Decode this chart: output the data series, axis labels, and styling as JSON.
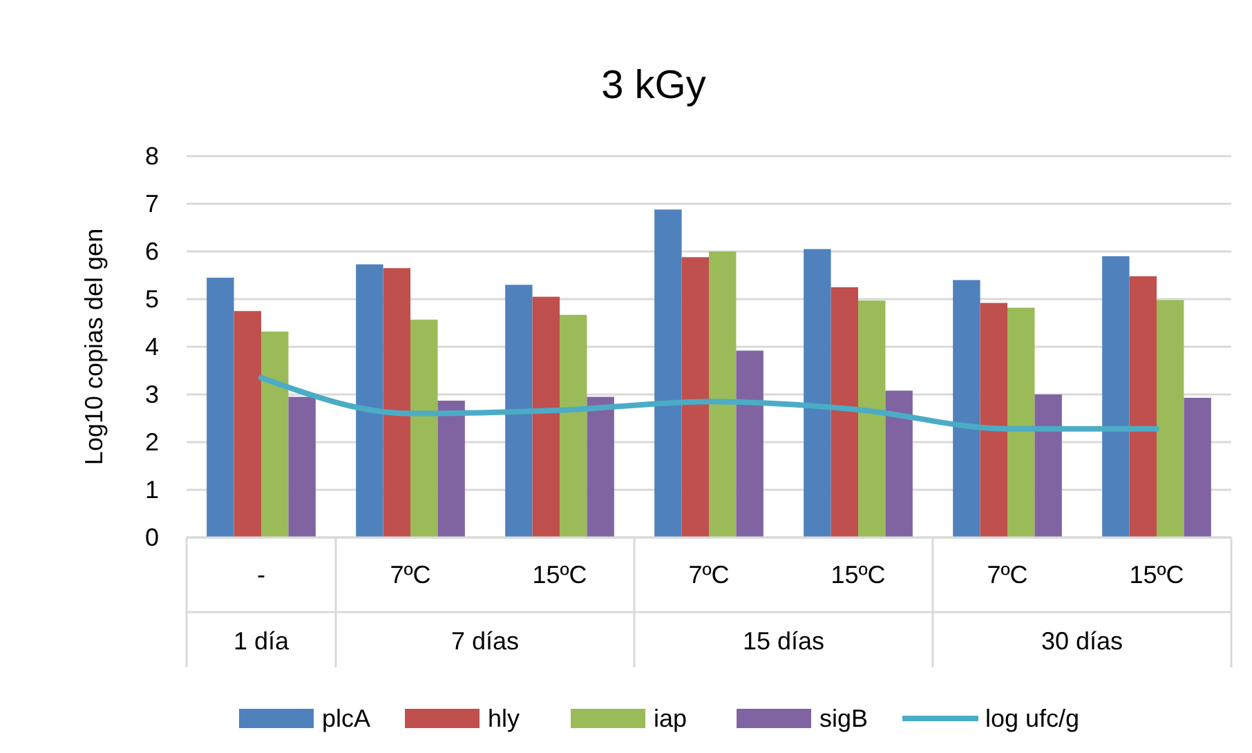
{
  "chart_data": {
    "type": "bar",
    "title": "3 kGy",
    "ylabel": "Log10 copias del gen",
    "categories": [
      "-",
      "7ºC",
      "15ºC",
      "7ºC",
      "15ºC",
      "7ºC",
      "15ºC"
    ],
    "annotations": [
      "1 día",
      "7 días",
      "15 días",
      "30 días"
    ],
    "series": [
      {
        "name": "plcA",
        "color": "#4f81bd",
        "values": [
          5.45,
          5.73,
          5.3,
          6.88,
          6.05,
          5.4,
          5.9
        ]
      },
      {
        "name": "hly",
        "color": "#c0504d",
        "values": [
          4.75,
          5.65,
          5.05,
          5.88,
          5.25,
          4.92,
          5.48
        ]
      },
      {
        "name": "iap",
        "color": "#9bbb59",
        "values": [
          4.32,
          4.57,
          4.67,
          6.0,
          4.97,
          4.82,
          4.98
        ]
      },
      {
        "name": "sigB",
        "color": "#8064a2",
        "values": [
          2.95,
          2.87,
          2.95,
          3.92,
          3.08,
          3.0,
          2.93
        ]
      },
      {
        "name": "log ufc/g",
        "type": "line",
        "color": "#4bacc6",
        "values": [
          3.35,
          2.6,
          2.67,
          2.85,
          2.68,
          2.28,
          2.28
        ]
      }
    ],
    "ylim": [
      0,
      8
    ],
    "yticks": [
      0,
      1,
      2,
      3,
      4,
      5,
      6,
      7,
      8
    ],
    "grid": "y",
    "legend": "bottom"
  }
}
